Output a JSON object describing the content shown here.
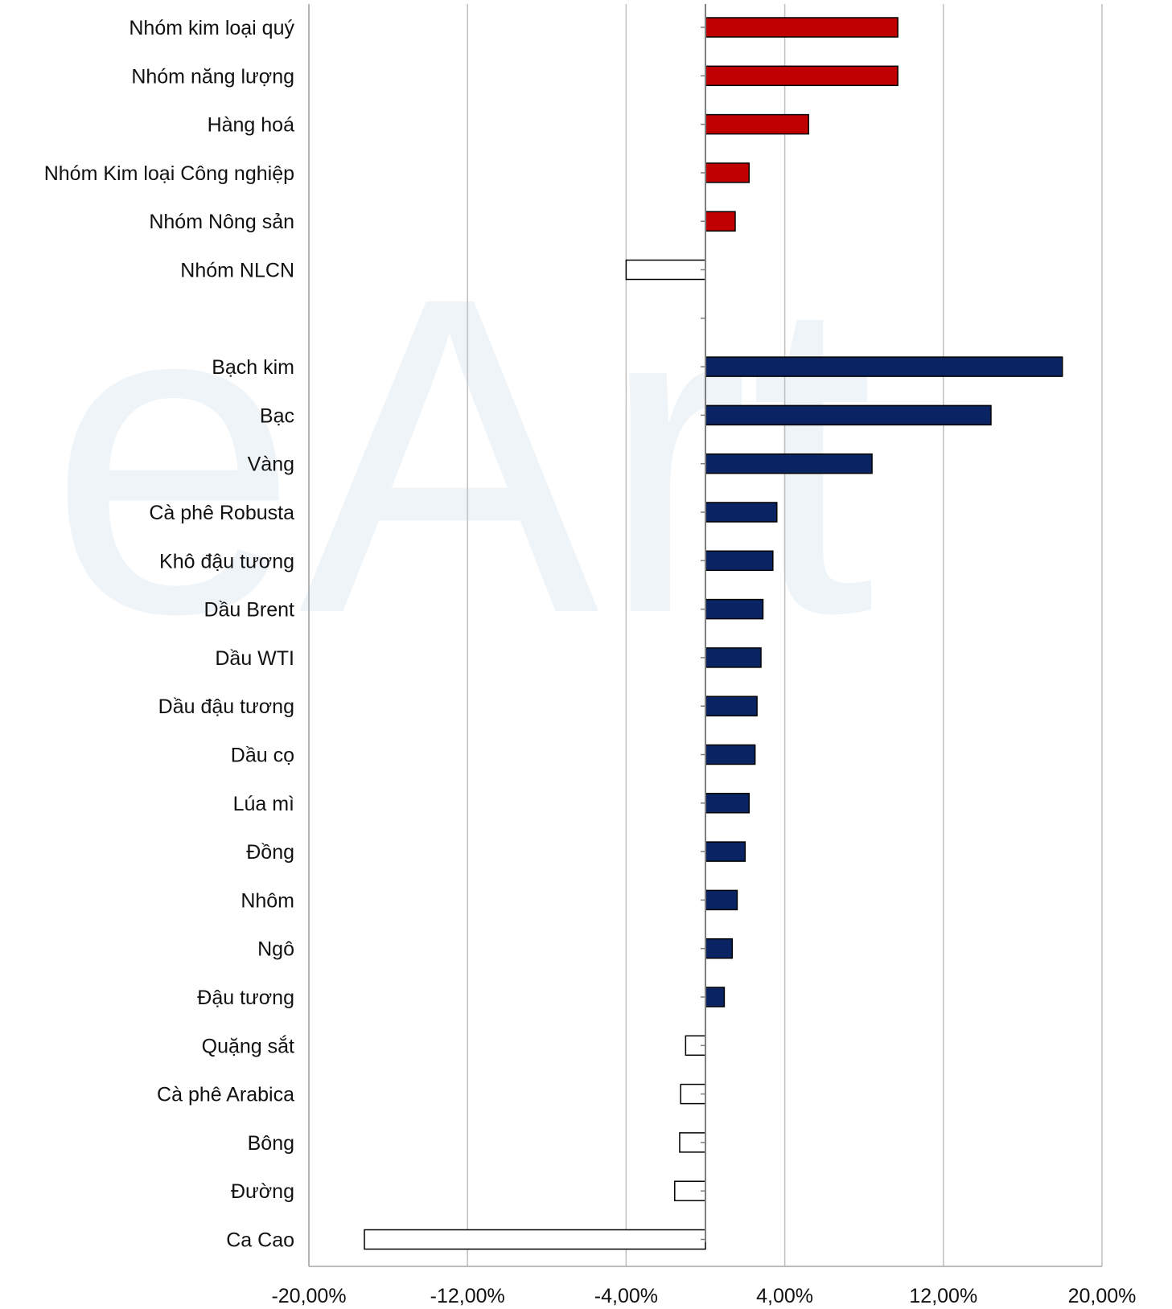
{
  "chart_data": {
    "type": "bar",
    "orientation": "horizontal",
    "title": "",
    "xlabel": "",
    "ylabel": "",
    "xlim": [
      -20,
      20
    ],
    "x_ticks": [
      -20,
      -12,
      -4,
      4,
      12,
      20
    ],
    "x_tick_labels": [
      "-20,00%",
      "-12,00%",
      "-4,00%",
      "4,00%",
      "12,00%",
      "20,00%"
    ],
    "grid": "vertical",
    "legend": "none",
    "colors": {
      "group_positive": "#c00000",
      "item_positive": "#0a2463",
      "negative_fill": "#ffffff",
      "bar_stroke": "#000000",
      "gridline": "#bfbfbf",
      "axis": "#a6a6a6"
    },
    "categories": [
      "Nhóm kim loại quý",
      "Nhóm năng lượng",
      "Hàng hoá",
      "Nhóm Kim loại Công nghiệp",
      "Nhóm Nông sản",
      "Nhóm NLCN",
      "",
      "Bạch kim",
      "Bạc",
      "Vàng",
      "Cà phê Robusta",
      "Khô đậu tương",
      "Dầu Brent",
      "Dầu WTI",
      "Dầu đậu tương",
      "Dầu cọ",
      "Lúa mì",
      "Đồng",
      "Nhôm",
      "Ngô",
      "Đậu tương",
      "Quặng sắt",
      "Cà phê Arabica",
      "Bông",
      "Đường",
      "Ca Cao"
    ],
    "values": [
      9.7,
      9.7,
      5.2,
      2.2,
      1.5,
      -4.0,
      null,
      18.0,
      14.4,
      8.4,
      3.6,
      3.4,
      2.9,
      2.8,
      2.6,
      2.5,
      2.2,
      2.0,
      1.6,
      1.35,
      0.95,
      -1.0,
      -1.25,
      -1.3,
      -1.55,
      -17.2
    ],
    "groups": [
      "group",
      "group",
      "group",
      "group",
      "group",
      "group",
      "gap",
      "item",
      "item",
      "item",
      "item",
      "item",
      "item",
      "item",
      "item",
      "item",
      "item",
      "item",
      "item",
      "item",
      "item",
      "item",
      "item",
      "item",
      "item",
      "item"
    ]
  }
}
